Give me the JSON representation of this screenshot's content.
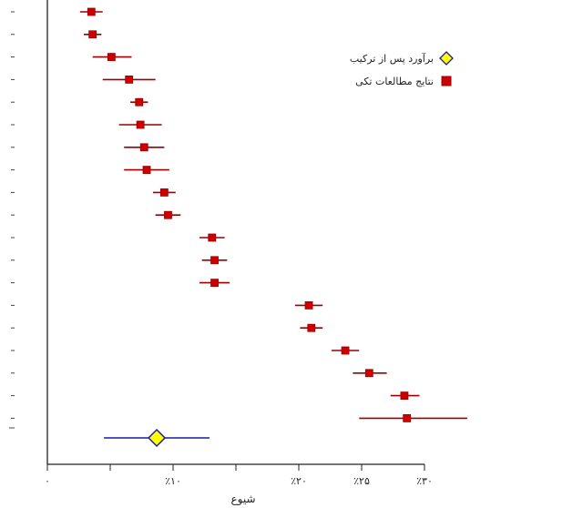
{
  "chart_data": {
    "type": "scatter",
    "subtype": "forest-plot",
    "title": "",
    "xlabel": "شیوع",
    "ylabel": "",
    "xlim": [
      0,
      30
    ],
    "xticks": [
      {
        "value": 0,
        "label": "٠"
      },
      {
        "value": 5,
        "label": ""
      },
      {
        "value": 10,
        "label": "٪۱۰"
      },
      {
        "value": 15,
        "label": ""
      },
      {
        "value": 20,
        "label": "٪۲۰"
      },
      {
        "value": 25,
        "label": "٪۲۵"
      },
      {
        "value": 30,
        "label": "٪۳۰"
      }
    ],
    "grid": false,
    "legend_position": "top-right",
    "series": [
      {
        "name": "نتایج مطالعات تکی",
        "marker": "square",
        "color": "#cc0000",
        "line_color": "#990000",
        "points": [
          {
            "estimate": 3.5,
            "lower": 2.6,
            "upper": 4.4
          },
          {
            "estimate": 3.6,
            "lower": 2.9,
            "upper": 4.3
          },
          {
            "estimate": 5.1,
            "lower": 3.6,
            "upper": 6.7
          },
          {
            "estimate": 6.5,
            "lower": 4.4,
            "upper": 8.6
          },
          {
            "estimate": 7.3,
            "lower": 6.6,
            "upper": 8.0
          },
          {
            "estimate": 7.4,
            "lower": 5.7,
            "upper": 9.1
          },
          {
            "estimate": 7.7,
            "lower": 6.1,
            "upper": 9.3
          },
          {
            "estimate": 7.9,
            "lower": 6.1,
            "upper": 9.7
          },
          {
            "estimate": 9.3,
            "lower": 8.4,
            "upper": 10.2
          },
          {
            "estimate": 9.6,
            "lower": 8.6,
            "upper": 10.6
          },
          {
            "estimate": 13.1,
            "lower": 12.1,
            "upper": 14.1
          },
          {
            "estimate": 13.3,
            "lower": 12.3,
            "upper": 14.3
          },
          {
            "estimate": 13.3,
            "lower": 12.1,
            "upper": 14.5
          },
          {
            "estimate": 20.8,
            "lower": 19.7,
            "upper": 21.9
          },
          {
            "estimate": 21.0,
            "lower": 20.1,
            "upper": 21.9
          },
          {
            "estimate": 23.7,
            "lower": 22.6,
            "upper": 24.8
          },
          {
            "estimate": 25.6,
            "lower": 24.3,
            "upper": 27.0
          },
          {
            "estimate": 28.4,
            "lower": 27.3,
            "upper": 29.6
          },
          {
            "estimate": 28.6,
            "lower": 24.8,
            "upper": 33.4
          }
        ]
      },
      {
        "name": "برآورد پس از ترکیب",
        "marker": "diamond",
        "color": "#ffff00",
        "line_color": "#1a1aa8",
        "points": [
          {
            "estimate": 8.7,
            "lower": 4.5,
            "upper": 12.9
          }
        ]
      }
    ]
  }
}
